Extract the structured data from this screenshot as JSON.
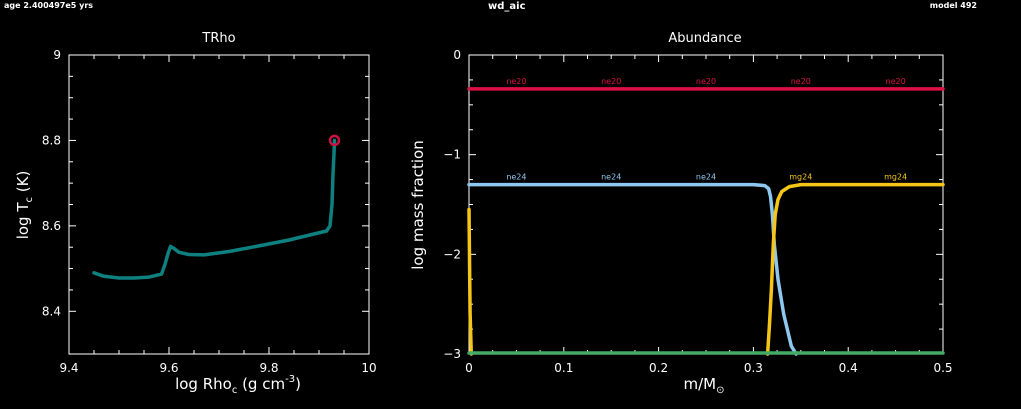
{
  "header": {
    "age": "age 2.400497e5 yrs",
    "name": "wd_aic",
    "model": "model 492"
  },
  "chart_data": [
    {
      "type": "line",
      "title": "TRho",
      "xlabel": "log Rho",
      "xlabel_sub": "c",
      "xlabel_unit": " (g cm",
      "xlabel_sup": "-3",
      "xlabel_end": ")",
      "ylabel": "log T",
      "ylabel_sub": "c",
      "ylabel_end": " (K)",
      "xlim": [
        9.4,
        10.0
      ],
      "ylim": [
        8.3,
        9.0
      ],
      "xticks": [
        9.4,
        9.6,
        9.8,
        10
      ],
      "xtick_labels": [
        "9.4",
        "9.6",
        "9.8",
        "10"
      ],
      "yticks": [
        8.4,
        8.6,
        8.8,
        9.0
      ],
      "ytick_labels": [
        "8.4",
        "8.6",
        "8.8",
        "9"
      ],
      "series": [
        {
          "color": "#0e8080",
          "x": [
            9.45,
            9.47,
            9.5,
            9.53,
            9.56,
            9.585,
            9.592,
            9.598,
            9.603,
            9.61,
            9.62,
            9.64,
            9.67,
            9.72,
            9.78,
            9.84,
            9.89,
            9.915,
            9.922,
            9.926,
            9.928,
            9.93,
            9.931
          ],
          "y": [
            8.49,
            8.482,
            8.478,
            8.478,
            8.48,
            8.487,
            8.51,
            8.535,
            8.552,
            8.547,
            8.538,
            8.533,
            8.532,
            8.54,
            8.553,
            8.567,
            8.581,
            8.588,
            8.6,
            8.65,
            8.72,
            8.77,
            8.8
          ]
        }
      ],
      "marker": {
        "x": 9.931,
        "y": 8.8,
        "color": "#cc1144"
      }
    },
    {
      "type": "line",
      "title": "Abundance",
      "xlabel": "m/M",
      "xlabel_sub": "⊙",
      "ylabel": "log mass fraction",
      "xlim": [
        0,
        0.5
      ],
      "ylim": [
        -3,
        0
      ],
      "xticks": [
        0,
        0.1,
        0.2,
        0.3,
        0.4,
        0.5
      ],
      "xtick_labels": [
        "0",
        "0.1",
        "0.2",
        "0.3",
        "0.4",
        "0.5"
      ],
      "yticks": [
        0,
        -1,
        -2,
        -3
      ],
      "ytick_labels": [
        "0",
        "−1",
        "−2",
        "−3"
      ],
      "series": [
        {
          "label": "ne20",
          "color": "#dd1144",
          "x": [
            0,
            0.5
          ],
          "y": [
            -0.34,
            -0.34
          ],
          "label_x": [
            0.05,
            0.15,
            0.25,
            0.35,
            0.45
          ]
        },
        {
          "label": "ne24",
          "color": "#8ec8f0",
          "x": [
            0,
            0.3,
            0.312,
            0.316,
            0.318,
            0.32,
            0.322,
            0.326,
            0.332,
            0.34,
            0.345
          ],
          "y": [
            -1.3,
            -1.3,
            -1.31,
            -1.34,
            -1.42,
            -1.6,
            -1.9,
            -2.25,
            -2.6,
            -2.92,
            -3.0
          ],
          "label_x": [
            0.05,
            0.15,
            0.25
          ]
        },
        {
          "label": "mg24",
          "color": "#f5c518",
          "x": [
            0.315,
            0.317,
            0.319,
            0.321,
            0.323,
            0.326,
            0.33,
            0.338,
            0.35,
            0.5
          ],
          "y": [
            -3.0,
            -2.7,
            -2.35,
            -1.9,
            -1.6,
            -1.45,
            -1.37,
            -1.32,
            -1.3,
            -1.3
          ],
          "label_x": [
            0.35,
            0.45
          ]
        },
        {
          "label": "",
          "color": "#f5c518",
          "x": [
            0.0,
            0.0012,
            0.0024
          ],
          "y": [
            -1.55,
            -2.6,
            -3.0
          ],
          "label_x": []
        },
        {
          "label": "",
          "color": "#44aa66",
          "x": [
            0,
            0.5
          ],
          "y": [
            -2.99,
            -2.99
          ],
          "label_x": []
        }
      ]
    }
  ]
}
